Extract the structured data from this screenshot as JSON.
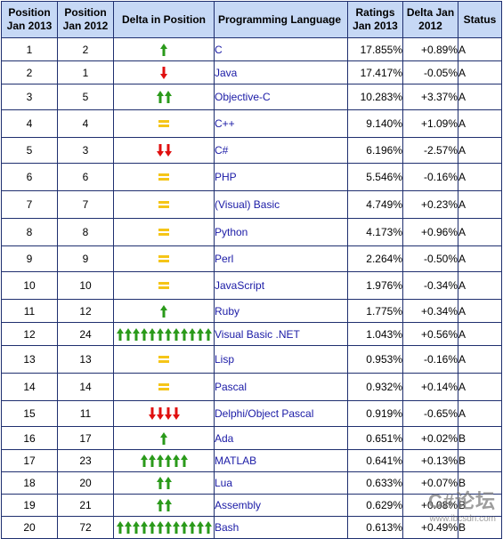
{
  "headers": {
    "pos2013": "Position Jan 2013",
    "pos2012": "Position Jan 2012",
    "delta_pos": "Delta in Position",
    "language": "Programming Language",
    "ratings": "Ratings Jan 2013",
    "delta": "Delta Jan 2012",
    "status": "Status"
  },
  "colors": {
    "header_bg": "#c6d8f5",
    "border": "#1f2f6f",
    "link": "#1a1aa6",
    "up": "#2a9a1a",
    "down": "#e01010",
    "same": "#f5c518"
  },
  "rows": [
    {
      "pos2013": "1",
      "pos2012": "2",
      "change": "up",
      "count": 1,
      "language": "C",
      "rating": "17.855%",
      "delta": "+0.89%",
      "status": "A"
    },
    {
      "pos2013": "2",
      "pos2012": "1",
      "change": "down",
      "count": 1,
      "language": "Java",
      "rating": "17.417%",
      "delta": "-0.05%",
      "status": "A"
    },
    {
      "pos2013": "3",
      "pos2012": "5",
      "change": "up",
      "count": 2,
      "language": "Objective-C",
      "rating": "10.283%",
      "delta": "+3.37%",
      "status": "A"
    },
    {
      "pos2013": "4",
      "pos2012": "4",
      "change": "same",
      "count": 1,
      "language": "C++",
      "rating": "9.140%",
      "delta": "+1.09%",
      "status": "A"
    },
    {
      "pos2013": "5",
      "pos2012": "3",
      "change": "down",
      "count": 2,
      "language": "C#",
      "rating": "6.196%",
      "delta": "-2.57%",
      "status": "A"
    },
    {
      "pos2013": "6",
      "pos2012": "6",
      "change": "same",
      "count": 1,
      "language": "PHP",
      "rating": "5.546%",
      "delta": "-0.16%",
      "status": "A"
    },
    {
      "pos2013": "7",
      "pos2012": "7",
      "change": "same",
      "count": 1,
      "language": "(Visual) Basic",
      "rating": "4.749%",
      "delta": "+0.23%",
      "status": "A"
    },
    {
      "pos2013": "8",
      "pos2012": "8",
      "change": "same",
      "count": 1,
      "language": "Python",
      "rating": "4.173%",
      "delta": "+0.96%",
      "status": "A"
    },
    {
      "pos2013": "9",
      "pos2012": "9",
      "change": "same",
      "count": 1,
      "language": "Perl",
      "rating": "2.264%",
      "delta": "-0.50%",
      "status": "A"
    },
    {
      "pos2013": "10",
      "pos2012": "10",
      "change": "same",
      "count": 1,
      "language": "JavaScript",
      "rating": "1.976%",
      "delta": "-0.34%",
      "status": "A"
    },
    {
      "pos2013": "11",
      "pos2012": "12",
      "change": "up",
      "count": 1,
      "language": "Ruby",
      "rating": "1.775%",
      "delta": "+0.34%",
      "status": "A"
    },
    {
      "pos2013": "12",
      "pos2012": "24",
      "change": "up",
      "count": 12,
      "language": "Visual Basic .NET",
      "rating": "1.043%",
      "delta": "+0.56%",
      "status": "A"
    },
    {
      "pos2013": "13",
      "pos2012": "13",
      "change": "same",
      "count": 1,
      "language": "Lisp",
      "rating": "0.953%",
      "delta": "-0.16%",
      "status": "A"
    },
    {
      "pos2013": "14",
      "pos2012": "14",
      "change": "same",
      "count": 1,
      "language": "Pascal",
      "rating": "0.932%",
      "delta": "+0.14%",
      "status": "A"
    },
    {
      "pos2013": "15",
      "pos2012": "11",
      "change": "down",
      "count": 4,
      "language": "Delphi/Object Pascal",
      "rating": "0.919%",
      "delta": "-0.65%",
      "status": "A"
    },
    {
      "pos2013": "16",
      "pos2012": "17",
      "change": "up",
      "count": 1,
      "language": "Ada",
      "rating": "0.651%",
      "delta": "+0.02%",
      "status": "B"
    },
    {
      "pos2013": "17",
      "pos2012": "23",
      "change": "up",
      "count": 6,
      "language": "MATLAB",
      "rating": "0.641%",
      "delta": "+0.13%",
      "status": "B"
    },
    {
      "pos2013": "18",
      "pos2012": "20",
      "change": "up",
      "count": 2,
      "language": "Lua",
      "rating": "0.633%",
      "delta": "+0.07%",
      "status": "B"
    },
    {
      "pos2013": "19",
      "pos2012": "21",
      "change": "up",
      "count": 2,
      "language": "Assembly",
      "rating": "0.629%",
      "delta": "+0.08%",
      "status": "B"
    },
    {
      "pos2013": "20",
      "pos2012": "72",
      "change": "up",
      "count": 12,
      "language": "Bash",
      "rating": "0.613%",
      "delta": "+0.49%",
      "status": "B"
    }
  ],
  "watermark": {
    "main": "C#论坛",
    "sub": "www.ibcsdn.com"
  }
}
